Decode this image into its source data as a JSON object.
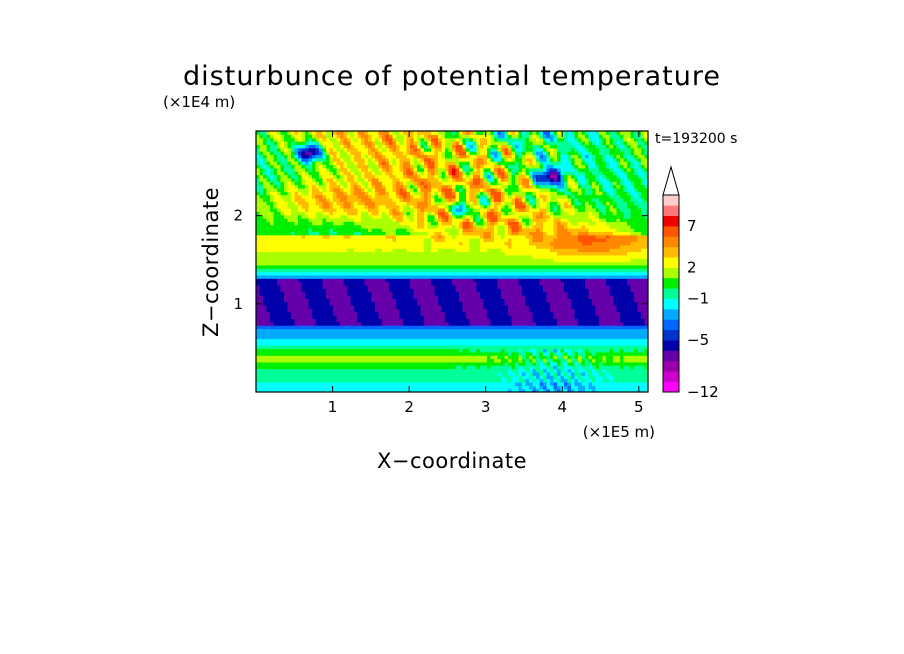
{
  "chart_data": {
    "type": "heatmap",
    "title": "disturbunce of potential temperature",
    "xlabel": "X−coordinate",
    "ylabel": "Z−coordinate",
    "x_unit": "(×1E5 m)",
    "y_unit": "(×1E4 m)",
    "time_label": "t=193200 s",
    "xlim": [
      0,
      5.12
    ],
    "ylim": [
      0,
      2.96
    ],
    "x_ticks": [
      {
        "value": 1,
        "label": "1"
      },
      {
        "value": 2,
        "label": "2"
      },
      {
        "value": 3,
        "label": "3"
      },
      {
        "value": 4,
        "label": "4"
      },
      {
        "value": 5,
        "label": "5"
      }
    ],
    "y_ticks": [
      {
        "value": 1,
        "label": "1"
      },
      {
        "value": 2,
        "label": "2"
      }
    ],
    "colorbar": {
      "levels": [
        -12,
        -11,
        -9,
        -7,
        -6,
        -5,
        -4,
        -3,
        -2,
        -1,
        0,
        1,
        2,
        3,
        4,
        5,
        7,
        9,
        12
      ],
      "colors": [
        "#ff00ff",
        "#cc00cc",
        "#9900aa",
        "#6600aa",
        "#0000aa",
        "#0033cc",
        "#0066ff",
        "#00aaff",
        "#00ffff",
        "#00ff99",
        "#00ee00",
        "#aaff00",
        "#ffff00",
        "#ffbb00",
        "#ff8800",
        "#ff5500",
        "#ee0000",
        "#ff7777",
        "#ffcccc"
      ],
      "tick_labels": [
        {
          "value": 7,
          "label": "7"
        },
        {
          "value": 2,
          "label": "2"
        },
        {
          "value": -1,
          "label": "−1"
        },
        {
          "value": -5,
          "label": "−5"
        },
        {
          "value": -12,
          "label": "−12"
        }
      ],
      "extend": "max"
    },
    "grid": false,
    "field_features": [
      {
        "x": 0.7,
        "z": 2.7,
        "value": -6,
        "note": "cold core upper left"
      },
      {
        "x": 3.85,
        "z": 2.45,
        "value": -6,
        "note": "cold core upper right"
      },
      {
        "x": 0.9,
        "z": 2.15,
        "value": 5
      },
      {
        "x": 4.4,
        "z": 1.7,
        "value": 4
      },
      {
        "x": 2.5,
        "z": 1.0,
        "value": -6
      },
      {
        "x": 2.5,
        "z": 0.35,
        "value": 1.5
      },
      {
        "x": 3.5,
        "z": 0.2,
        "value": -3
      }
    ]
  }
}
